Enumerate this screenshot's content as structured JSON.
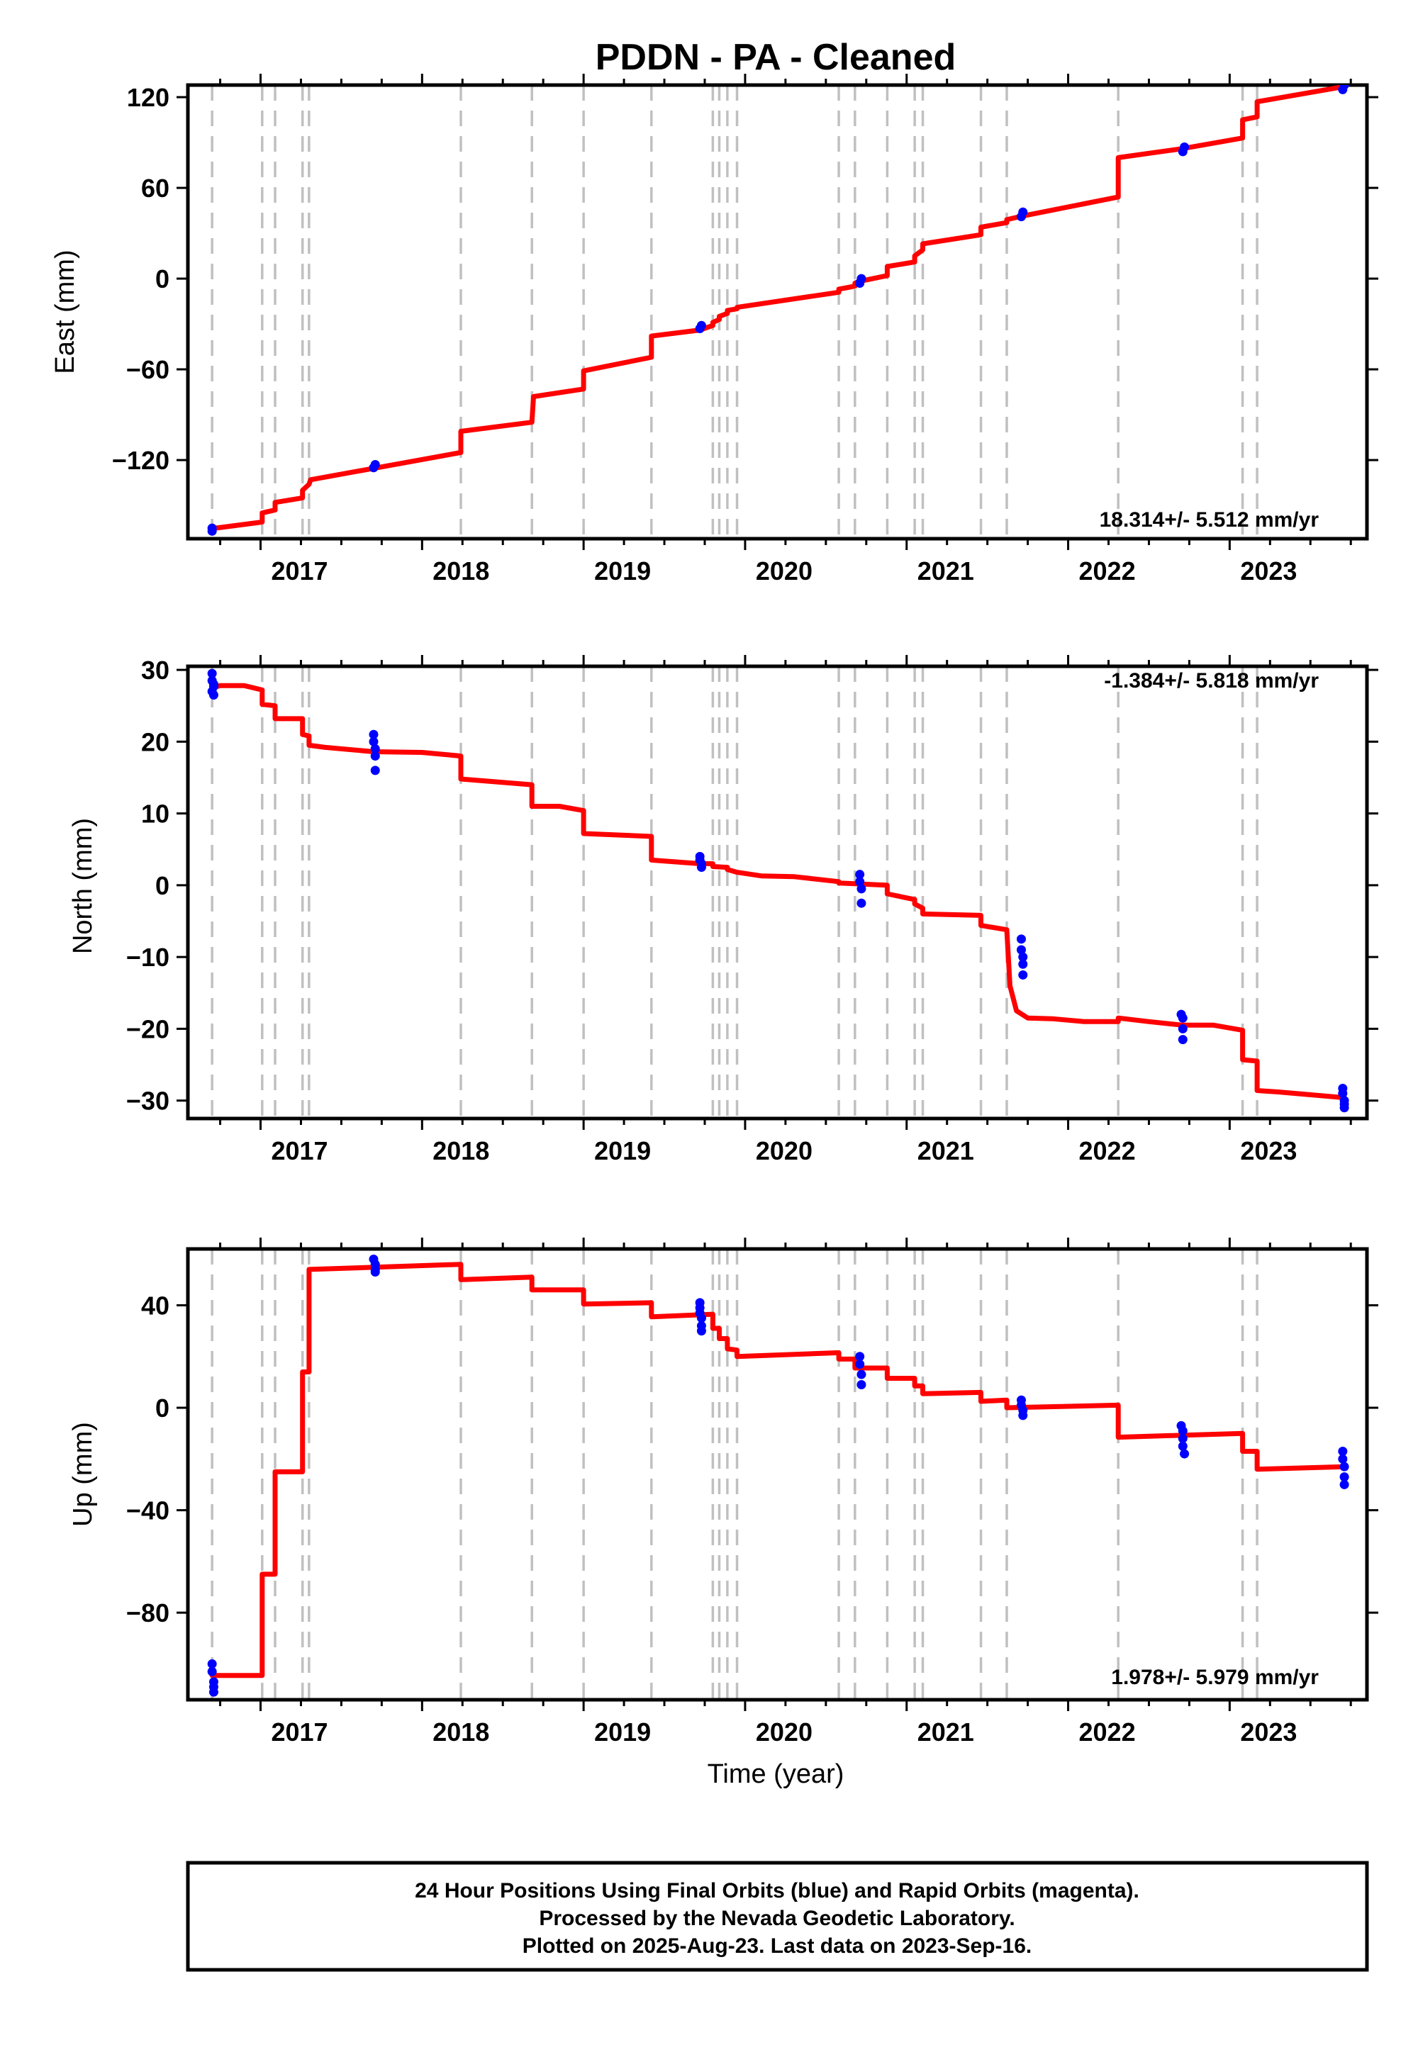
{
  "title": "PDDN  - PA - Cleaned",
  "colors": {
    "model": "#ff0000",
    "final": "#0000ff",
    "rapid": "#ff00ff",
    "steps": "#c0c0c0"
  },
  "chart_data": [
    {
      "type": "line",
      "id": "east",
      "ylabel": "East (mm)",
      "xlabel": "",
      "xlim": [
        2016.55,
        2023.85
      ],
      "ylim": [
        -172,
        128
      ],
      "yticks": [
        -120,
        -60,
        0,
        60,
        120
      ],
      "yticklabels": [
        "−120",
        "−60",
        "0",
        "60",
        "120"
      ],
      "xticks": [
        2017,
        2018,
        2019,
        2020,
        2021,
        2022,
        2023
      ],
      "xticklabels": [
        "2017",
        "2018",
        "2019",
        "2020",
        "2021",
        "2022",
        "2023"
      ],
      "rate": "18.314+/- 5.512 mm/yr",
      "rate_position": "bottom-right",
      "steps": [
        2016.7,
        2017.01,
        2017.09,
        2017.26,
        2017.3,
        2018.24,
        2018.68,
        2019.0,
        2019.42,
        2019.8,
        2019.84,
        2019.89,
        2019.95,
        2020.58,
        2020.68,
        2020.88,
        2021.05,
        2021.1,
        2021.46,
        2021.62,
        2022.31,
        2023.08,
        2023.17
      ],
      "series": [
        {
          "name": "model",
          "style": "line",
          "x": [
            2016.7,
            2016.72,
            2017.01,
            2017.01,
            2017.09,
            2017.09,
            2017.26,
            2017.26,
            2017.3,
            2017.31,
            2018.24,
            2018.24,
            2018.68,
            2018.69,
            2019.0,
            2019.0,
            2019.42,
            2019.42,
            2019.72,
            2019.8,
            2019.8,
            2019.84,
            2019.84,
            2019.89,
            2019.89,
            2019.95,
            2019.95,
            2020.58,
            2020.58,
            2020.68,
            2020.68,
            2020.7,
            2020.88,
            2020.88,
            2021.05,
            2021.05,
            2021.1,
            2021.1,
            2021.46,
            2021.46,
            2021.62,
            2021.62,
            2021.7,
            2022.31,
            2022.31,
            2022.71,
            2023.08,
            2023.08,
            2023.17,
            2023.17,
            2023.71
          ],
          "y": [
            -166,
            -165,
            -161,
            -155,
            -153,
            -148,
            -145,
            -140,
            -136,
            -133,
            -115,
            -101,
            -95,
            -78,
            -73,
            -61,
            -52,
            -38,
            -34,
            -31,
            -29,
            -27,
            -25,
            -23,
            -21,
            -20,
            -19,
            -9,
            -7,
            -5,
            -3,
            -2,
            2,
            8,
            11,
            15,
            19,
            23,
            29,
            34,
            37,
            39,
            41,
            54,
            80,
            86,
            93,
            105,
            107,
            117,
            127
          ]
        },
        {
          "name": "final",
          "style": "points",
          "x": [
            2016.7,
            2016.7,
            2017.7,
            2017.71,
            2019.72,
            2019.73,
            2020.71,
            2020.72,
            2021.71,
            2021.72,
            2022.71,
            2022.72,
            2023.7,
            2023.71
          ],
          "y": [
            -167,
            -165,
            -125,
            -123,
            -33,
            -31,
            -3,
            0,
            41,
            44,
            84,
            87,
            125,
            128
          ]
        }
      ]
    },
    {
      "type": "line",
      "id": "north",
      "ylabel": "North (mm)",
      "xlabel": "",
      "xlim": [
        2016.55,
        2023.85
      ],
      "ylim": [
        -32.5,
        30.5
      ],
      "yticks": [
        -30,
        -20,
        -10,
        0,
        10,
        20,
        30
      ],
      "yticklabels": [
        "−30",
        "−20",
        "−10",
        "0",
        "10",
        "20",
        "30"
      ],
      "xticks": [
        2017,
        2018,
        2019,
        2020,
        2021,
        2022,
        2023
      ],
      "xticklabels": [
        "2017",
        "2018",
        "2019",
        "2020",
        "2021",
        "2022",
        "2023"
      ],
      "rate": "-1.384+/- 5.818 mm/yr",
      "rate_position": "top-right",
      "steps": [
        2016.7,
        2017.01,
        2017.09,
        2017.26,
        2017.3,
        2018.24,
        2018.68,
        2019.0,
        2019.42,
        2019.8,
        2019.84,
        2019.89,
        2019.95,
        2020.58,
        2020.68,
        2020.88,
        2021.05,
        2021.1,
        2021.46,
        2021.62,
        2022.31,
        2023.08,
        2023.17
      ],
      "series": [
        {
          "name": "model",
          "style": "line",
          "x": [
            2016.7,
            2016.75,
            2016.9,
            2017.01,
            2017.01,
            2017.09,
            2017.09,
            2017.26,
            2017.26,
            2017.3,
            2017.3,
            2017.4,
            2017.7,
            2018.0,
            2018.24,
            2018.24,
            2018.68,
            2018.68,
            2018.85,
            2019.0,
            2019.0,
            2019.42,
            2019.42,
            2019.72,
            2019.8,
            2019.8,
            2019.89,
            2019.89,
            2019.95,
            2020.1,
            2020.3,
            2020.58,
            2020.58,
            2020.68,
            2020.68,
            2020.88,
            2020.88,
            2021.05,
            2021.05,
            2021.1,
            2021.1,
            2021.46,
            2021.46,
            2021.62,
            2021.64,
            2021.68,
            2021.75,
            2021.9,
            2022.1,
            2022.31,
            2022.31,
            2022.5,
            2022.71,
            2022.9,
            2023.08,
            2023.08,
            2023.17,
            2023.17,
            2023.3,
            2023.71
          ],
          "y": [
            27.5,
            27.8,
            27.8,
            27.2,
            25.2,
            25.0,
            23.2,
            23.2,
            21.0,
            20.8,
            19.5,
            19.2,
            18.6,
            18.5,
            18.0,
            14.8,
            14.0,
            11.0,
            11.0,
            10.4,
            7.2,
            6.8,
            3.5,
            3.0,
            3.0,
            2.6,
            2.5,
            2.2,
            1.8,
            1.3,
            1.2,
            0.5,
            0.3,
            0.2,
            0.2,
            0.0,
            -1.2,
            -2.0,
            -2.6,
            -3.2,
            -4.0,
            -4.2,
            -5.6,
            -6.2,
            -14.0,
            -17.5,
            -18.5,
            -18.6,
            -19.0,
            -19.0,
            -18.5,
            -19.0,
            -19.5,
            -19.5,
            -20.2,
            -24.3,
            -24.5,
            -28.6,
            -28.8,
            -29.6
          ]
        },
        {
          "name": "final",
          "style": "points",
          "x": [
            2016.7,
            2016.7,
            2016.7,
            2016.71,
            2016.71,
            2016.71,
            2017.7,
            2017.7,
            2017.71,
            2017.71,
            2017.71,
            2019.72,
            2019.72,
            2019.73,
            2019.73,
            2020.71,
            2020.71,
            2020.72,
            2020.72,
            2021.71,
            2021.71,
            2021.72,
            2021.72,
            2021.72,
            2022.7,
            2022.71,
            2022.71,
            2022.71,
            2023.7,
            2023.7,
            2023.71,
            2023.71,
            2023.71
          ],
          "y": [
            29.5,
            28.5,
            27.0,
            26.5,
            28.0,
            27.7,
            21.0,
            20.0,
            19.0,
            18.0,
            16.0,
            4.0,
            3.5,
            2.5,
            3.0,
            1.5,
            0.5,
            -0.5,
            -2.5,
            -7.5,
            -9.0,
            -10.0,
            -11.0,
            -12.5,
            -18.0,
            -18.5,
            -20.0,
            -21.5,
            -28.3,
            -29.0,
            -30.0,
            -30.5,
            -31.0
          ]
        }
      ]
    },
    {
      "type": "line",
      "id": "up",
      "ylabel": "Up (mm)",
      "xlabel": "Time (year)",
      "xlim": [
        2016.55,
        2023.85
      ],
      "ylim": [
        -114,
        62
      ],
      "yticks": [
        -80,
        -40,
        0,
        40
      ],
      "yticklabels": [
        "−80",
        "−40",
        "0",
        "40"
      ],
      "xticks": [
        2017,
        2018,
        2019,
        2020,
        2021,
        2022,
        2023
      ],
      "xticklabels": [
        "2017",
        "2018",
        "2019",
        "2020",
        "2021",
        "2022",
        "2023"
      ],
      "rate": "1.978+/- 5.979 mm/yr",
      "rate_position": "bottom-right",
      "steps": [
        2016.7,
        2017.01,
        2017.09,
        2017.26,
        2017.3,
        2018.24,
        2018.68,
        2019.0,
        2019.42,
        2019.8,
        2019.84,
        2019.89,
        2019.95,
        2020.58,
        2020.68,
        2020.88,
        2021.05,
        2021.1,
        2021.46,
        2021.62,
        2022.31,
        2023.08,
        2023.17
      ],
      "series": [
        {
          "name": "model",
          "style": "line",
          "x": [
            2016.7,
            2017.01,
            2017.01,
            2017.09,
            2017.09,
            2017.26,
            2017.26,
            2017.3,
            2017.3,
            2018.24,
            2018.24,
            2018.68,
            2018.68,
            2019.0,
            2019.0,
            2019.42,
            2019.42,
            2019.8,
            2019.8,
            2019.84,
            2019.84,
            2019.89,
            2019.89,
            2019.95,
            2019.95,
            2020.58,
            2020.58,
            2020.68,
            2020.68,
            2020.88,
            2020.88,
            2021.05,
            2021.05,
            2021.1,
            2021.1,
            2021.46,
            2021.46,
            2021.62,
            2021.62,
            2022.31,
            2022.31,
            2023.08,
            2023.08,
            2023.17,
            2023.17,
            2023.71
          ],
          "y": [
            -104.5,
            -104.5,
            -65,
            -65,
            -25,
            -25,
            14,
            14,
            54,
            56,
            50,
            51,
            46,
            46,
            40.5,
            41,
            35.5,
            36.5,
            31,
            31,
            27,
            27,
            23,
            22.5,
            20,
            21.5,
            19,
            19,
            15.5,
            15.5,
            11.5,
            11.5,
            8.5,
            8.5,
            5.5,
            6,
            2.5,
            3,
            0,
            1,
            -11.5,
            -10,
            -17,
            -17,
            -24,
            -23
          ]
        },
        {
          "name": "final",
          "style": "points",
          "x": [
            2016.7,
            2016.7,
            2016.71,
            2016.71,
            2016.71,
            2017.7,
            2017.71,
            2017.71,
            2017.71,
            2019.72,
            2019.72,
            2019.72,
            2019.73,
            2019.73,
            2019.73,
            2020.71,
            2020.71,
            2020.72,
            2020.72,
            2021.71,
            2021.71,
            2021.72,
            2021.72,
            2022.7,
            2022.71,
            2022.71,
            2022.71,
            2022.72,
            2023.7,
            2023.7,
            2023.71,
            2023.71,
            2023.71
          ],
          "y": [
            -100,
            -103,
            -107,
            -109,
            -111,
            58,
            56,
            54,
            53,
            41,
            39,
            37,
            35,
            32,
            30,
            20,
            17,
            13,
            9,
            3,
            1,
            -1,
            -3,
            -7,
            -9,
            -12,
            -15,
            -18,
            -17,
            -20,
            -23,
            -27,
            -30
          ]
        }
      ]
    }
  ],
  "footer": {
    "line1": "24 Hour Positions Using Final Orbits (blue) and Rapid Orbits (magenta).",
    "line2": "Processed by the Nevada Geodetic Laboratory.",
    "line3": "Plotted on 2025-Aug-23. Last data on 2023-Sep-16."
  }
}
